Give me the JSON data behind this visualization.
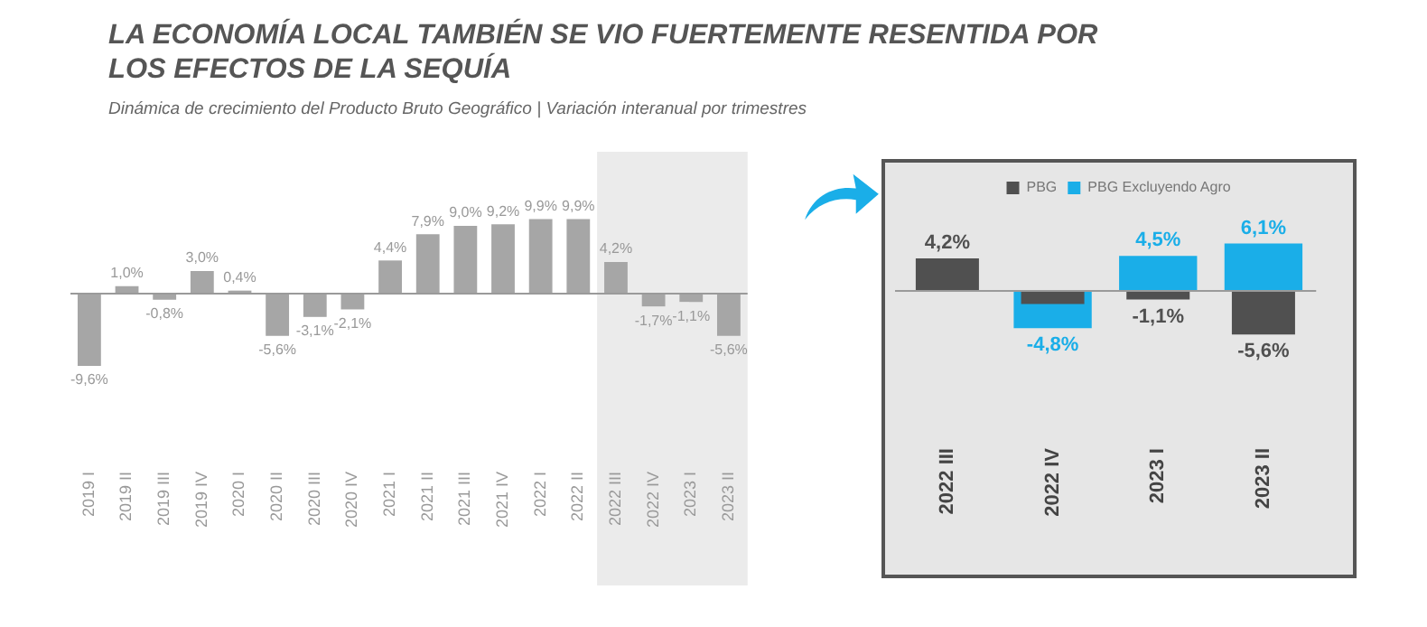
{
  "chart_data": [
    {
      "type": "bar",
      "title": "LA ECONOMÍA LOCAL TAMBIÉN SE VIO FUERTEMENTE RESENTIDA POR LOS EFECTOS DE LA SEQUÍA",
      "subtitle": "Dinámica de crecimiento del Producto Bruto Geográfico | Variación interanual por trimestres",
      "categories": [
        "2019 I",
        "2019 II",
        "2019 III",
        "2019 IV",
        "2020 I",
        "2020 II",
        "2020 III",
        "2020 IV",
        "2021 I",
        "2021 II",
        "2021 III",
        "2021 IV",
        "2022 I",
        "2022 II",
        "2022 III",
        "2022 IV",
        "2023 I",
        "2023 II"
      ],
      "values": [
        -9.6,
        1.0,
        -0.8,
        3.0,
        0.4,
        -5.6,
        -3.1,
        -2.1,
        4.4,
        7.9,
        9.0,
        9.2,
        9.9,
        9.9,
        4.2,
        -1.7,
        -1.1,
        -5.6
      ],
      "value_labels": [
        "-9,6%",
        "1,0%",
        "-0,8%",
        "3,0%",
        "0,4%",
        "-5,6%",
        "-3,1%",
        "-2,1%",
        "4,4%",
        "7,9%",
        "9,0%",
        "9,2%",
        "9,9%",
        "9,9%",
        "4,2%",
        "-1,7%",
        "-1,1%",
        "-5,6%"
      ],
      "color": "#a6a6a6",
      "bands": [
        {
          "axis": "x",
          "from": "2022 III",
          "to": "2023 II",
          "color": "#ebebeb"
        }
      ],
      "tick_labels": "x"
    },
    {
      "type": "bar",
      "categories": [
        "2022 III",
        "2022 IV",
        "2023 I",
        "2023 II"
      ],
      "series": [
        {
          "name": "PBG",
          "color": "#505050",
          "values": [
            4.2,
            -1.7,
            -1.1,
            -5.6
          ],
          "value_labels": [
            "4,2%",
            null,
            "-1,1%",
            "-5,6%"
          ]
        },
        {
          "name": "PBG Excluyendo Agro",
          "color": "#1aaee8",
          "values": [
            null,
            -4.8,
            4.5,
            6.1
          ],
          "value_labels": [
            null,
            "-4,8%",
            "4,5%",
            "6,1%"
          ]
        }
      ],
      "legend": "top",
      "tick_labels": "x"
    }
  ]
}
